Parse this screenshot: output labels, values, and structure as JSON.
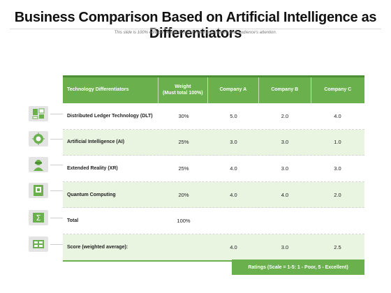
{
  "header": {
    "title": "Business Comparison Based on Artificial Intelligence as Differentiators",
    "subtitle": "This slide is 100% editable. Adapt it to your need and capture your audience's attention."
  },
  "table": {
    "columns": [
      "Technology Differentiators",
      "Weight\n(Must total 100%)",
      "Company A",
      "Company B",
      "Company C"
    ],
    "rows": [
      {
        "label": "Distributed Ledger Technology (DLT)",
        "weight": "30%",
        "a": "5.0",
        "b": "2.0",
        "c": "4.0",
        "icon": "ledger-icon"
      },
      {
        "label": "Artificial Intelligence (AI)",
        "weight": "25%",
        "a": "3.0",
        "b": "3.0",
        "c": "1.0",
        "icon": "ai-chip-icon"
      },
      {
        "label": "Extended Reality (XR)",
        "weight": "25%",
        "a": "4.0",
        "b": "3.0",
        "c": "3.0",
        "icon": "vr-headset-icon"
      },
      {
        "label": "Quantum Computing",
        "weight": "20%",
        "a": "4.0",
        "b": "4.0",
        "c": "2.0",
        "icon": "quantum-computer-icon"
      },
      {
        "label": "Total",
        "weight": "100%",
        "a": "",
        "b": "",
        "c": "",
        "icon": "sum-icon"
      },
      {
        "label": "Score (weighted average):",
        "weight": "",
        "a": "4.0",
        "b": "3.0",
        "c": "2.5",
        "icon": "scorecard-icon"
      }
    ]
  },
  "footer": {
    "ratings_note": "Ratings (Scale = 1-5: 1 - Poor, 5 - Excellent)"
  },
  "colors": {
    "accent": "#6ab04c",
    "row_alt": "#e9f4e1",
    "icon_bg": "#e4e4e4"
  }
}
